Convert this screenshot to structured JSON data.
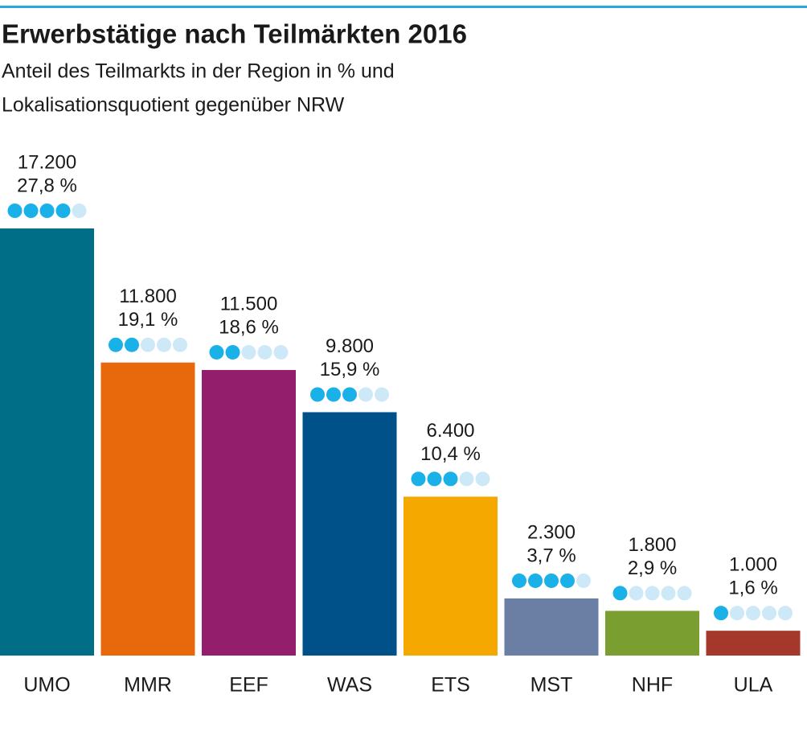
{
  "chart_data": {
    "type": "bar",
    "title": "Erwerbstätige nach Teilmärkten 2016",
    "subtitle": [
      "Anteil des Teilmarkts in der Region in % und",
      "Lokalisationsquotient gegenüber NRW"
    ],
    "categories": [
      "UMO",
      "MMR",
      "EEF",
      "WAS",
      "ETS",
      "MST",
      "NHF",
      "ULA"
    ],
    "values": [
      17200,
      11800,
      11500,
      9800,
      6400,
      2300,
      1800,
      1000
    ],
    "value_labels": [
      "17.200",
      "11.800",
      "11.500",
      "9.800",
      "6.400",
      "2.300",
      "1.800",
      "1.000"
    ],
    "colors": [
      "#006e87",
      "#e8680c",
      "#931f6c",
      "#00508a",
      "#f5a800",
      "#6b7fa5",
      "#7a9e2f",
      "#a4382a"
    ],
    "shares": {
      "values": [
        27.8,
        19.1,
        18.6,
        15.9,
        10.4,
        3.7,
        2.9,
        1.6
      ],
      "value_labels": [
        "27,8 %",
        "19,1 %",
        "18,6 %",
        "15,9 %",
        "10,4 %",
        "3,7 %",
        "2,9 %",
        "1,6 %"
      ]
    },
    "quotient_dots": {
      "values": [
        4,
        2,
        2,
        3,
        3,
        4,
        1,
        1
      ],
      "max": 5,
      "color": "#1ab0e8",
      "empty_color": "#cde8f7"
    }
  }
}
